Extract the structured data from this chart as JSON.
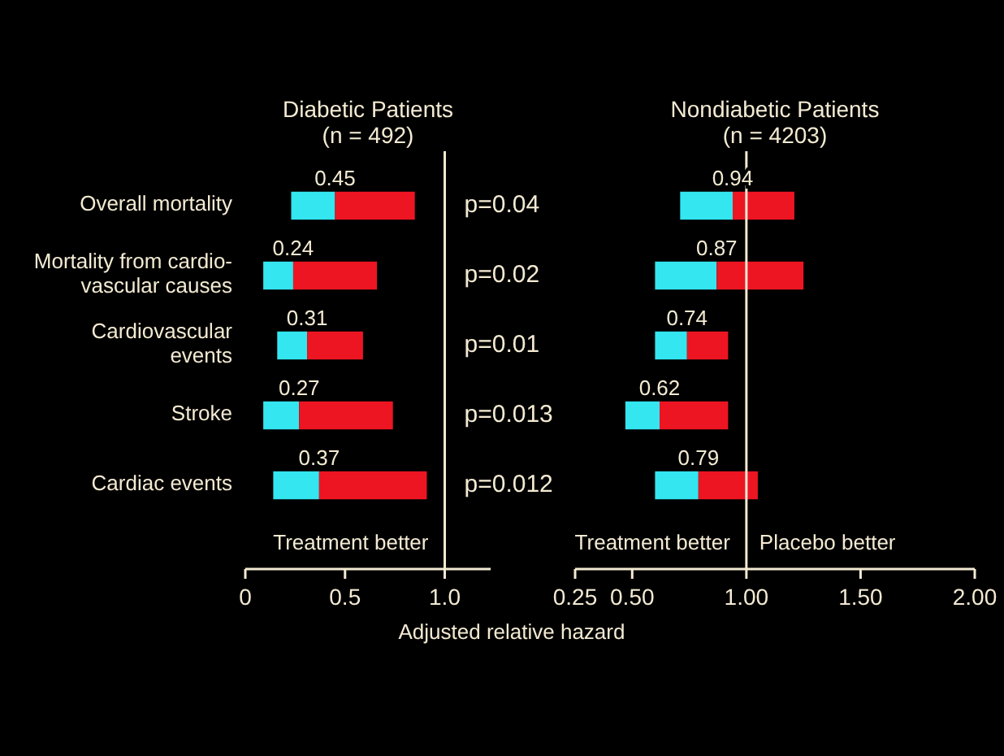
{
  "chart_data": [
    {
      "type": "bar",
      "orientation": "horizontal",
      "title": "Diabetic Patients",
      "subtitle": "(n = 492)",
      "xlabel": "Adjusted relative hazard",
      "categories": [
        "Overall mortality",
        "Mortality from cardio-\nvascular causes",
        "Cardiovascular\nevents",
        "Stroke",
        "Cardiac events"
      ],
      "series": [
        {
          "color": "#33e6f0",
          "base": [
            0.23,
            0.09,
            0.16,
            0.09,
            0.14
          ],
          "values": [
            0.22,
            0.15,
            0.15,
            0.18,
            0.23
          ]
        },
        {
          "color": "#ee1522",
          "base": [
            0.45,
            0.24,
            0.31,
            0.27,
            0.37
          ],
          "values": [
            0.4,
            0.42,
            0.28,
            0.47,
            0.54
          ]
        }
      ],
      "xlim": [
        0,
        1.23
      ],
      "xticks": [
        0,
        0.5,
        {
          "value": 1,
          "label": "1.0"
        }
      ],
      "ref_lines": [
        {
          "axis": "x",
          "value": 1
        }
      ],
      "annotations": [
        {
          "text": "0.45",
          "x": 0.45,
          "y": "Overall mortality"
        },
        {
          "text": "0.24",
          "x": 0.24,
          "y": "Mortality from cardio-\nvascular causes"
        },
        {
          "text": "0.31",
          "x": 0.31,
          "y": "Cardiovascular\nevents"
        },
        {
          "text": "0.27",
          "x": 0.27,
          "y": "Stroke"
        },
        {
          "text": "0.37",
          "x": 0.37,
          "y": "Cardiac events"
        },
        "p=0.04",
        "p=0.02",
        "p=0.01",
        "p=0.013",
        "p=0.012",
        "Treatment better"
      ],
      "grid": false
    },
    {
      "type": "bar",
      "orientation": "horizontal",
      "title": "Nondiabetic Patients",
      "subtitle": "(n = 4203)",
      "categories": [
        "Overall mortality",
        "Mortality from cardio-\nvascular causes",
        "Cardiovascular\nevents",
        "Stroke",
        "Cardiac events"
      ],
      "series": [
        {
          "color": "#33e6f0",
          "base": [
            0.71,
            0.6,
            0.6,
            0.47,
            0.6
          ],
          "values": [
            0.23,
            0.27,
            0.14,
            0.15,
            0.19
          ]
        },
        {
          "color": "#ee1522",
          "base": [
            0.94,
            0.87,
            0.74,
            0.62,
            0.79
          ],
          "values": [
            0.27,
            0.38,
            0.18,
            0.3,
            0.26
          ]
        }
      ],
      "xlim": [
        0.25,
        2
      ],
      "xticks": [
        0.25,
        {
          "value": 0.5,
          "label": "0.50"
        },
        {
          "value": 1,
          "label": "1.00"
        },
        {
          "value": 1.5,
          "label": "1.50"
        },
        {
          "value": 2,
          "label": "2.00"
        }
      ],
      "ref_lines": [
        {
          "axis": "x",
          "value": 1
        }
      ],
      "annotations": [
        {
          "text": "0.94",
          "x": 0.94,
          "y": "Overall mortality"
        },
        {
          "text": "0.87",
          "x": 0.87,
          "y": "Mortality from cardio-\nvascular causes"
        },
        {
          "text": "0.74",
          "x": 0.74,
          "y": "Cardiovascular\nevents"
        },
        {
          "text": "0.62",
          "x": 0.62,
          "y": "Stroke"
        },
        {
          "text": "0.79",
          "x": 0.79,
          "y": "Cardiac events"
        },
        "Treatment better",
        "Placebo better"
      ],
      "tick_labels": "x",
      "grid": false
    }
  ]
}
